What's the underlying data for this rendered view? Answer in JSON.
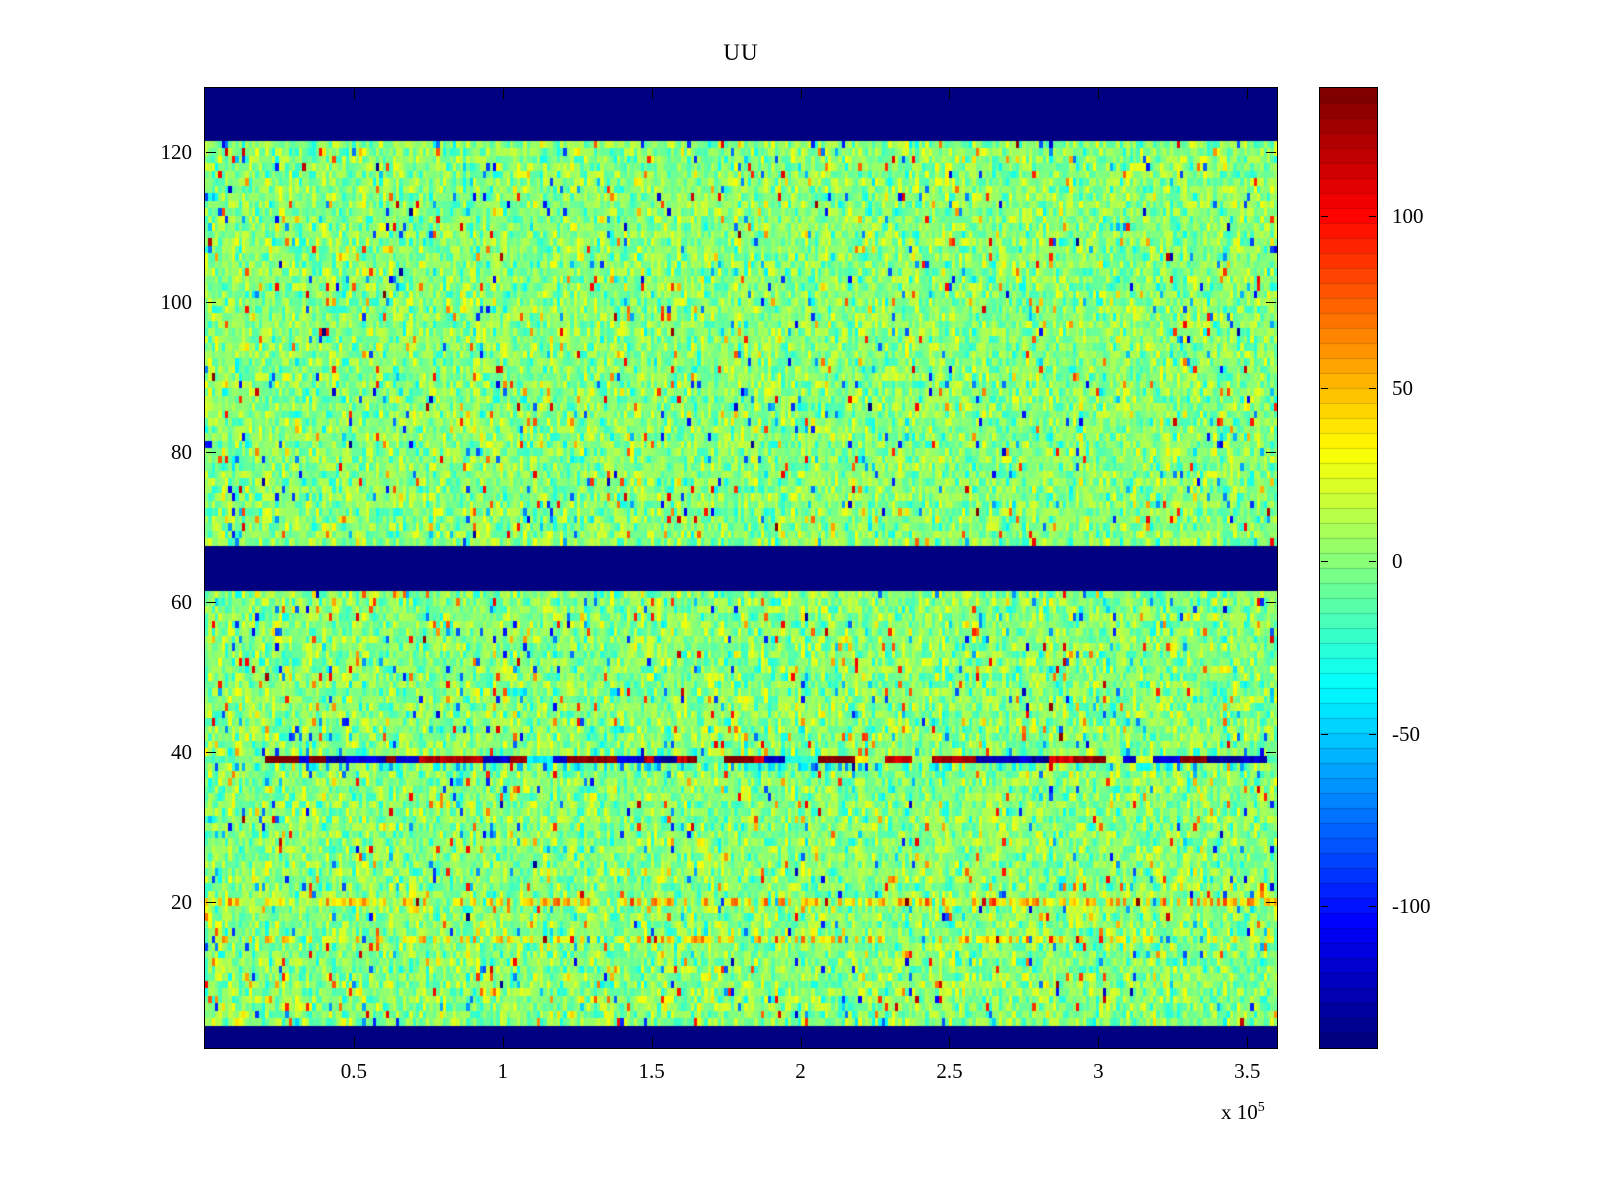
{
  "title": "UU",
  "colors": {
    "background": "#ffffff",
    "blank_band": "#000080",
    "axis": "#000000"
  },
  "chart_data": {
    "type": "heatmap",
    "title": "UU",
    "xlabel": "",
    "ylabel": "",
    "colormap": "jet",
    "x_axis": {
      "min": 0,
      "max": 360000,
      "ticks": [
        50000,
        100000,
        150000,
        200000,
        250000,
        300000,
        350000
      ],
      "tick_labels": [
        "0.5",
        "1",
        "1.5",
        "2",
        "2.5",
        "3",
        "3.5"
      ],
      "exponent_prefix": "x 10",
      "exponent": "5"
    },
    "y_axis": {
      "min": 0.5,
      "max": 128.5,
      "ticks": [
        20,
        40,
        60,
        80,
        100,
        120
      ],
      "tick_labels": [
        "20",
        "40",
        "60",
        "80",
        "100",
        "120"
      ]
    },
    "colorbar": {
      "min": -141,
      "max": 137,
      "ticks": [
        100,
        50,
        0,
        -50,
        -100
      ],
      "tick_labels": [
        "100",
        "50",
        "0",
        "-50",
        "-100"
      ],
      "levels": 64,
      "position": "right"
    },
    "grid": {
      "rows": 128,
      "cols": 320
    },
    "features": {
      "background_noise": {
        "mean": 0,
        "std": 15,
        "outlier_probability": 0.055
      },
      "blank_band_rows": [
        [
          1,
          3
        ],
        [
          62,
          67
        ],
        [
          122,
          128
        ]
      ],
      "blank_band_value": -141,
      "hot_row": 39,
      "hot_row_value_range": [
        110,
        141
      ],
      "cool_row": 38,
      "warm_rows": [
        15,
        20
      ],
      "seed": 42
    },
    "legend": "colorbar",
    "grid_lines": false
  }
}
